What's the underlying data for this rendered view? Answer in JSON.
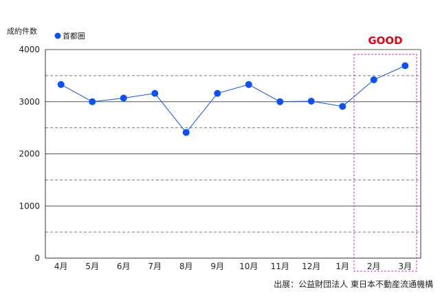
{
  "chart_data": {
    "type": "line",
    "ylabel": "成約件数",
    "ylim": [
      0,
      4000
    ],
    "yticks": [
      0,
      1000,
      2000,
      3000,
      4000
    ],
    "grid": true,
    "legend_position": "top-left",
    "categories": [
      "4月",
      "5月",
      "6月",
      "7月",
      "8月",
      "9月",
      "10月",
      "11月",
      "12月",
      "1月",
      "2月",
      "3月"
    ],
    "series": [
      {
        "name": "首都圏",
        "color": "#0a50ff",
        "values": [
          3330,
          3000,
          3070,
          3160,
          2410,
          3160,
          3330,
          3000,
          3010,
          2910,
          3420,
          3690
        ]
      }
    ],
    "highlight": {
      "label": "GOOD",
      "categories": [
        "2月",
        "3月"
      ],
      "color": "#e60012",
      "box_color": "#cc33cc"
    },
    "source": "出展：公益財団法人 東日本不動産流通機構"
  }
}
